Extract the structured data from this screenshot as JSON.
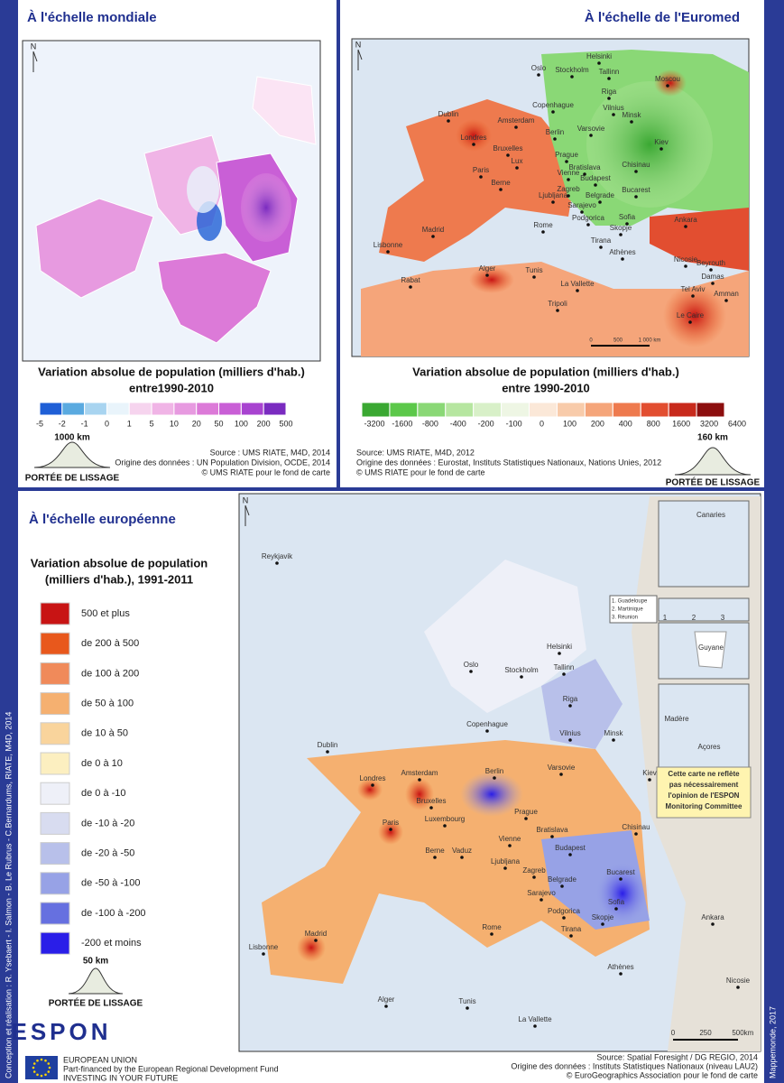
{
  "world": {
    "title": "À l'échelle mondiale",
    "legend_title": "Variation absolue de population (milliers d'hab.)",
    "legend_subtitle": "entre1990-2010",
    "classes": [
      "-5",
      "-2",
      "-1",
      "0",
      "1",
      "5",
      "10",
      "20",
      "50",
      "100",
      "200",
      "500"
    ],
    "smoothing": "1000 km",
    "smoothing_label": "PORTÉE DE LISSAGE",
    "sources": [
      "Source : UMS RIATE, M4D, 2014",
      "Origine des données : UN Population Division, OCDE, 2014",
      "© UMS RIATE pour le fond de carte"
    ]
  },
  "euromed": {
    "title": "À l'échelle de l'Euromed",
    "legend_title": "Variation absolue de population (milliers d'hab.)",
    "legend_subtitle": "entre 1990-2010",
    "classes": [
      "-3200",
      "-1600",
      "-800",
      "-400",
      "-200",
      "-100",
      "0",
      "100",
      "200",
      "400",
      "800",
      "1600",
      "3200",
      "6400"
    ],
    "smoothing": "160 km",
    "smoothing_label": "PORTÉE DE LISSAGE",
    "sources": [
      "Source: UMS RIATE, M4D, 2012",
      "Origine des données : Eurostat, Instituts Statistiques Nationaux, Nations Unies, 2012",
      "© UMS RIATE pour le fond de carte"
    ],
    "scale": [
      "0",
      "500",
      "1 000 km"
    ],
    "cities": [
      "Oslo",
      "Stockholm",
      "Helsinki",
      "Tallinn",
      "Moscou",
      "Riga",
      "Copenhague",
      "Vilnius",
      "Minsk",
      "Dublin",
      "Amsterdam",
      "Berlin",
      "Varsovie",
      "Londres",
      "Bruxelles",
      "Lux",
      "Prague",
      "Kiev",
      "Paris",
      "Berne",
      "Vienne",
      "Bratislava",
      "Budapest",
      "Chisinau",
      "Zagreb",
      "Ljubljana",
      "Belgrade",
      "Bucarest",
      "Sarajevo",
      "Podgorica",
      "Sofia",
      "Ankara",
      "Rome",
      "Skopje",
      "Tirana",
      "Madrid",
      "Athènes",
      "Lisbonne",
      "Nicosie",
      "Beyrouth",
      "Damas",
      "Alger",
      "Tunis",
      "Tel Aviv",
      "Amman",
      "Rabat",
      "La Vallette",
      "Tripoli",
      "Le Caire"
    ]
  },
  "europe": {
    "title": "À l'échelle européenne",
    "legend_title": [
      "Variation absolue de population",
      "(milliers d'hab.), 1991-2011"
    ],
    "classes": [
      "500 et  plus",
      "de 200 à 500",
      "de 100 à 200",
      "de 50 à 100",
      "de 10 à 50",
      "de 0 à 10",
      "de 0 à -10",
      "de -10 à -20",
      "de -20 à -50",
      "de -50 à -100",
      "de -100 à -200",
      "-200 et moins"
    ],
    "smoothing": "50 km",
    "smoothing_label": "PORTÉE DE LISSAGE",
    "scale": [
      "0",
      "250",
      "500",
      "km"
    ],
    "cities": [
      "Reykjavik",
      "Helsinki",
      "Oslo",
      "Stockholm",
      "Tallinn",
      "Riga",
      "Copenhague",
      "Vilnius",
      "Minsk",
      "Dublin",
      "Amsterdam",
      "Berlin",
      "Varsovie",
      "Londres",
      "Bruxelles",
      "Luxembourg",
      "Prague",
      "Kiev",
      "Paris",
      "Bratislava",
      "Vienne",
      "Berne",
      "Vaduz",
      "Budapest",
      "Chisinau",
      "Ljubljana",
      "Zagreb",
      "Bucarest",
      "Belgrade",
      "Sarajevo",
      "Sofia",
      "Podgorica",
      "Skopje",
      "Ankara",
      "Rome",
      "Tirana",
      "Madrid",
      "Lisbonne",
      "Athènes",
      "Nicosie",
      "Alger",
      "Tunis",
      "La Vallette"
    ],
    "insets": {
      "canaries": "Canaries",
      "dom": [
        "1. Guadeloupe",
        "2. Martinique",
        "3. Réunion"
      ],
      "numbers": [
        "1",
        "2",
        "3"
      ],
      "guyane": "Guyane",
      "madere": "Madère",
      "acores": "Açores"
    },
    "note": [
      "Cette carte ne reflète",
      "pas nécessairement",
      "l'opinion de l'ESPON",
      "Monitoring Committee"
    ],
    "sources": [
      "Source: Spatial Foresight / DG REGIO, 2014",
      "Origine des données : Instituts Statistiques Nationaux (niveau LAU2)",
      "© EuroGeographics Association pour le fond de carte"
    ]
  },
  "credits": "Conception et réalisation : R. Ysebaert - I. Salmon - B. Le Rubrus - C.Bernardums, RIATE, M4D, 2014",
  "publication": "Mappemonde, 2017",
  "north": "N",
  "footer": {
    "logo": "ESPON",
    "eu": "EUROPEAN UNION",
    "fund": "Part-financed by the European Regional Development Fund",
    "motto": "INVESTING IN YOUR FUTURE"
  }
}
